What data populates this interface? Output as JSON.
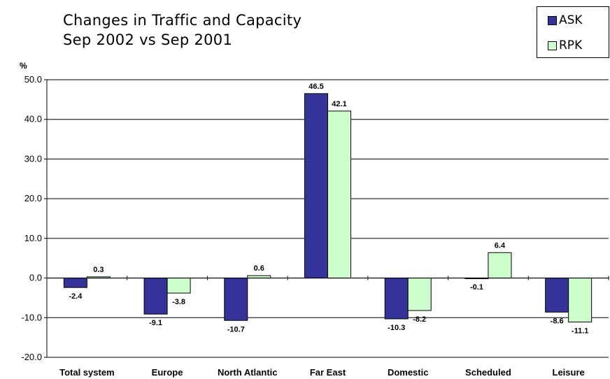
{
  "chart_data": {
    "type": "bar",
    "title": "Changes in Traffic and Capacity",
    "subtitle": "Sep 2002 vs Sep 2001",
    "ylabel": "%",
    "xlabel": "",
    "ylim": [
      -20,
      50
    ],
    "yticks": [
      "50.0",
      "40.0",
      "30.0",
      "20.0",
      "10.0",
      "0.0",
      "-10.0",
      "-20.0"
    ],
    "ytick_values": [
      50,
      40,
      30,
      20,
      10,
      0,
      -10,
      -20
    ],
    "grid": true,
    "legend_position": "top-right",
    "categories": [
      "Total system",
      "Europe",
      "North Atlantic",
      "Far East",
      "Domestic",
      "Scheduled",
      "Leisure"
    ],
    "series": [
      {
        "name": "ASK",
        "color": "#333399",
        "values": [
          -2.4,
          -9.1,
          -10.7,
          46.5,
          -10.3,
          -0.1,
          -8.6
        ],
        "labels": [
          "-2.4",
          "-9.1",
          "-10.7",
          "46.5",
          "-10.3",
          "-0.1",
          "-8.6"
        ]
      },
      {
        "name": "RPK",
        "color": "#ccffcc",
        "values": [
          0.3,
          -3.8,
          0.6,
          42.1,
          -8.2,
          6.4,
          -11.1
        ],
        "labels": [
          "0.3",
          "-3.8",
          "0.6",
          "42.1",
          "-8.2",
          "6.4",
          "-11.1"
        ]
      }
    ]
  }
}
